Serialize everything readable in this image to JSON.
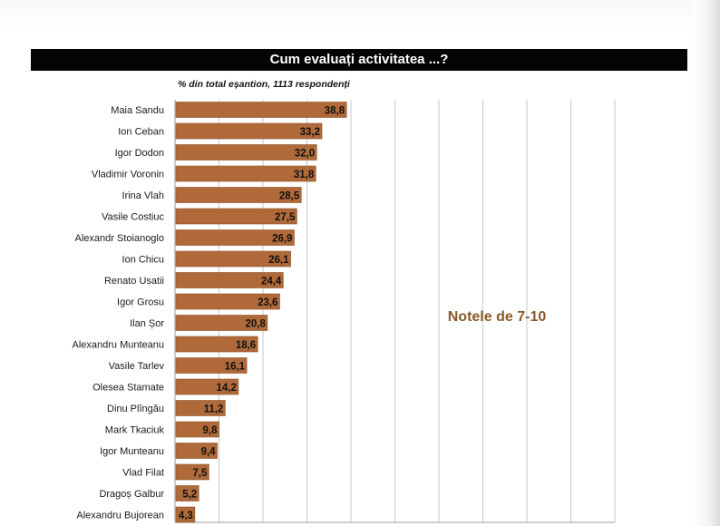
{
  "header": {
    "title": "Cum evaluați activitatea ...?",
    "subtitle": "% din total eșantion, 1113 respondenți"
  },
  "chart_data": {
    "type": "bar",
    "orientation": "horizontal",
    "title": "Cum evaluați activitatea ...?",
    "subtitle": "% din total eșantion, 1113 respondenți",
    "annotation": "Notele de 7-10",
    "categories": [
      "Maia Sandu",
      "Ion Ceban",
      "Igor Dodon",
      "Vladimir Voronin",
      "Irina Vlah",
      "Vasile Costiuc",
      "Alexandr Stoianoglo",
      "Ion Chicu",
      "Renato Usatii",
      "Igor Grosu",
      "Ilan Șor",
      "Alexandru Munteanu",
      "Vasile Tarlev",
      "Olesea Stamate",
      "Dinu Plîngău",
      "Mark Tkaciuk",
      "Igor Munteanu",
      "Vlad Filat",
      "Dragoș Galbur",
      "Alexandru Bujorean"
    ],
    "values": [
      38.8,
      33.2,
      32.0,
      31.8,
      28.5,
      27.5,
      26.9,
      26.1,
      24.4,
      23.6,
      20.8,
      18.6,
      16.1,
      14.2,
      11.2,
      9.8,
      9.4,
      7.5,
      5.2,
      4.3
    ],
    "value_labels": [
      "38,8",
      "33,2",
      "32,0",
      "31,8",
      "28,5",
      "27,5",
      "26,9",
      "26,1",
      "24,4",
      "23,6",
      "20,8",
      "18,6",
      "16,1",
      "14,2",
      "11,2",
      "9,8",
      "9,4",
      "7,5",
      "5,2",
      "4,3"
    ],
    "xlim": [
      0,
      100
    ],
    "grid": true,
    "bar_color": "#b06a3a",
    "gridline_color": "#c8c8c8",
    "annotation_color": "#8a5a2b"
  }
}
